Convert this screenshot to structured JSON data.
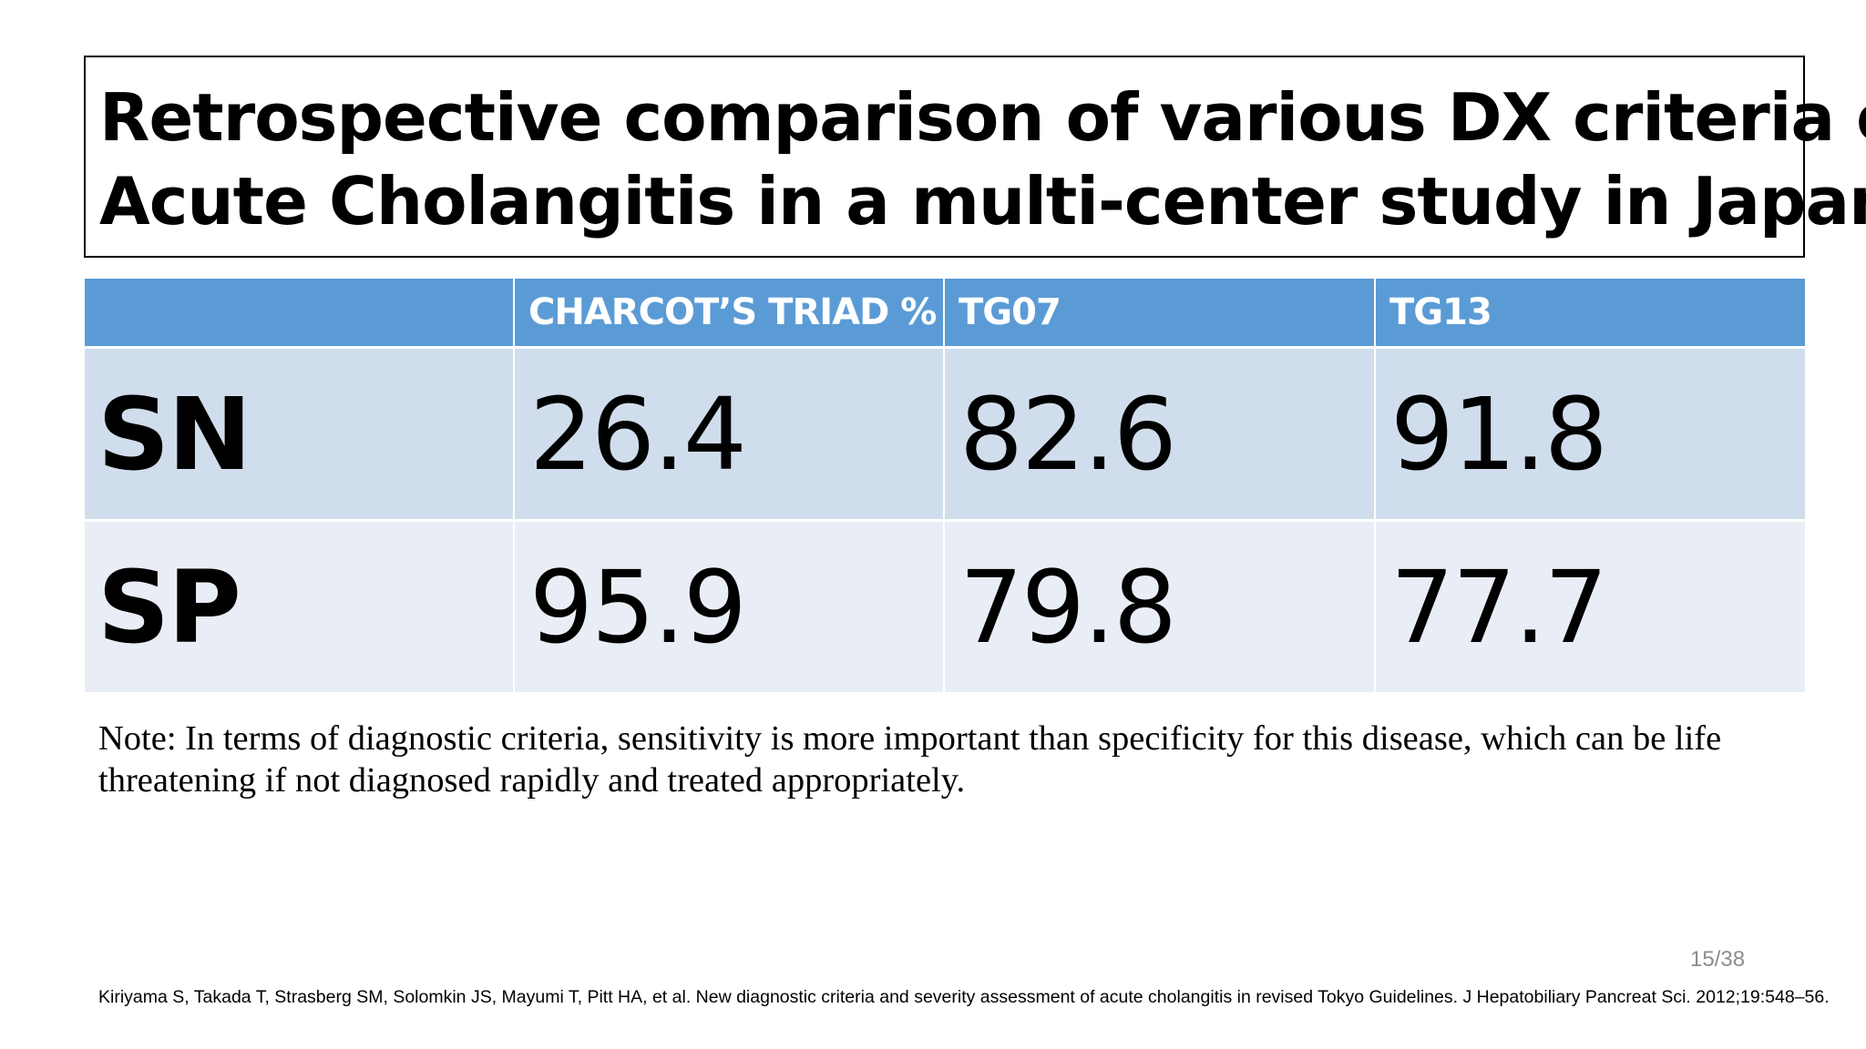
{
  "slide": {
    "title_lines": [
      "Retrospective comparison of various DX criteria of",
      "Acute Cholangitis in a multi-center study in Japan"
    ],
    "table": {
      "headers": [
        "",
        "CHARCOT’S TRIAD %",
        "TG07",
        "TG13"
      ],
      "rows": [
        {
          "label": "SN",
          "values": [
            "26.4",
            "82.6",
            "91.8"
          ]
        },
        {
          "label": "SP",
          "values": [
            "95.9",
            "79.8",
            "77.7"
          ]
        }
      ]
    },
    "note_lines": [
      "Note: In terms of diagnostic criteria, sensitivity is more important than specificity for this disease, which can be life",
      "threatening if not diagnosed rapidly and treated appropriately."
    ],
    "page_number": "15/38",
    "citation": "Kiriyama S, Takada T, Strasberg SM, Solomkin JS, Mayumi T, Pitt HA, et al. New diagnostic criteria and severity assessment of acute cholangitis in revised Tokyo Guidelines. J Hepatobiliary Pancreat Sci. 2012;19:548–56."
  },
  "colors": {
    "header_fill": "#5b9bd5",
    "row_sn_fill": "#d0ddec",
    "row_sp_fill": "#e9eef6"
  }
}
